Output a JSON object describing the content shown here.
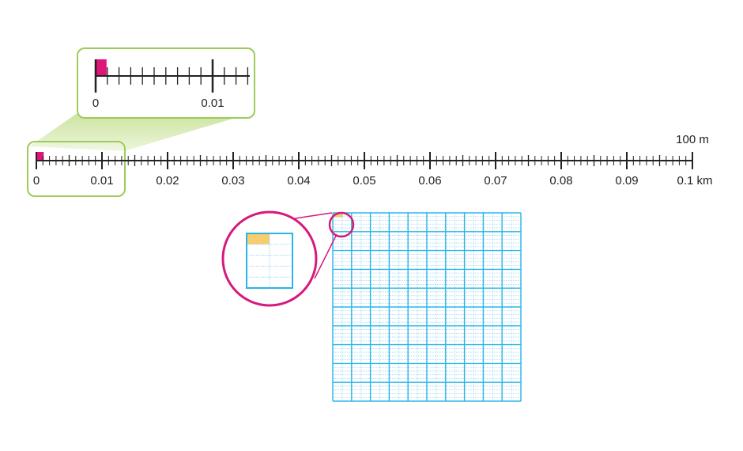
{
  "number_line": {
    "tick_labels": [
      "0",
      "0.01",
      "0.02",
      "0.03",
      "0.04",
      "0.05",
      "0.06",
      "0.07",
      "0.08",
      "0.09",
      "0.1 km"
    ],
    "end_label": "100 m",
    "highlight_fraction": 0.01
  },
  "zoom_callout": {
    "tick_labels": [
      "0",
      "0.01"
    ]
  },
  "grid": {
    "major_cells_per_side": 10,
    "minor_rows_per_cell": 5,
    "minor_cols_per_cell": 2
  },
  "colors": {
    "axis": "#222222",
    "highlight": "#e0157a",
    "callout_border": "#9ccc5a",
    "callout_fill": "#d8ebb4",
    "grid_line": "#2ab5e8",
    "grid_minor": "#9ad8f2",
    "magnifier_ring": "#d6197b",
    "grid_highlight": "#f7cd6e"
  }
}
